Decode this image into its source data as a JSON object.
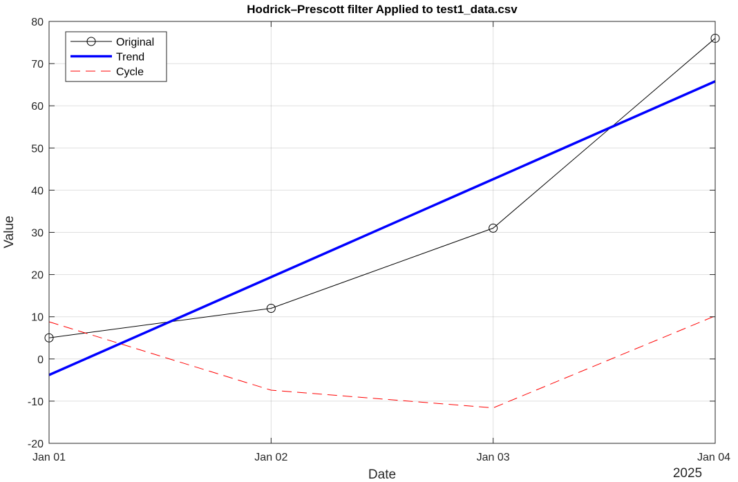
{
  "chart_data": {
    "type": "line",
    "title": "Hodrick–Prescott filter Applied to test1_data.csv",
    "xlabel": "Date",
    "ylabel": "Value",
    "x_tick_labels": [
      "Jan 01",
      "Jan 02",
      "Jan 03",
      "Jan 04"
    ],
    "x_secondary_label": "2025",
    "x": [
      "2025-01-01",
      "2025-01-02",
      "2025-01-03",
      "2025-01-04"
    ],
    "ylim": [
      -20,
      80
    ],
    "yticks": [
      -20,
      -10,
      0,
      10,
      20,
      30,
      40,
      50,
      60,
      70,
      80
    ],
    "grid": true,
    "legend_position": "top-left",
    "series": [
      {
        "name": "Original",
        "values": [
          5,
          12,
          31,
          76
        ],
        "color": "#000000",
        "style": "solid-circle-markers"
      },
      {
        "name": "Trend",
        "values": [
          -3.8,
          19.4,
          42.6,
          65.8
        ],
        "color": "#0000ff",
        "style": "thick-solid"
      },
      {
        "name": "Cycle",
        "values": [
          8.8,
          -7.4,
          -11.6,
          10.2
        ],
        "color": "#ff0000",
        "style": "dashed"
      }
    ]
  }
}
